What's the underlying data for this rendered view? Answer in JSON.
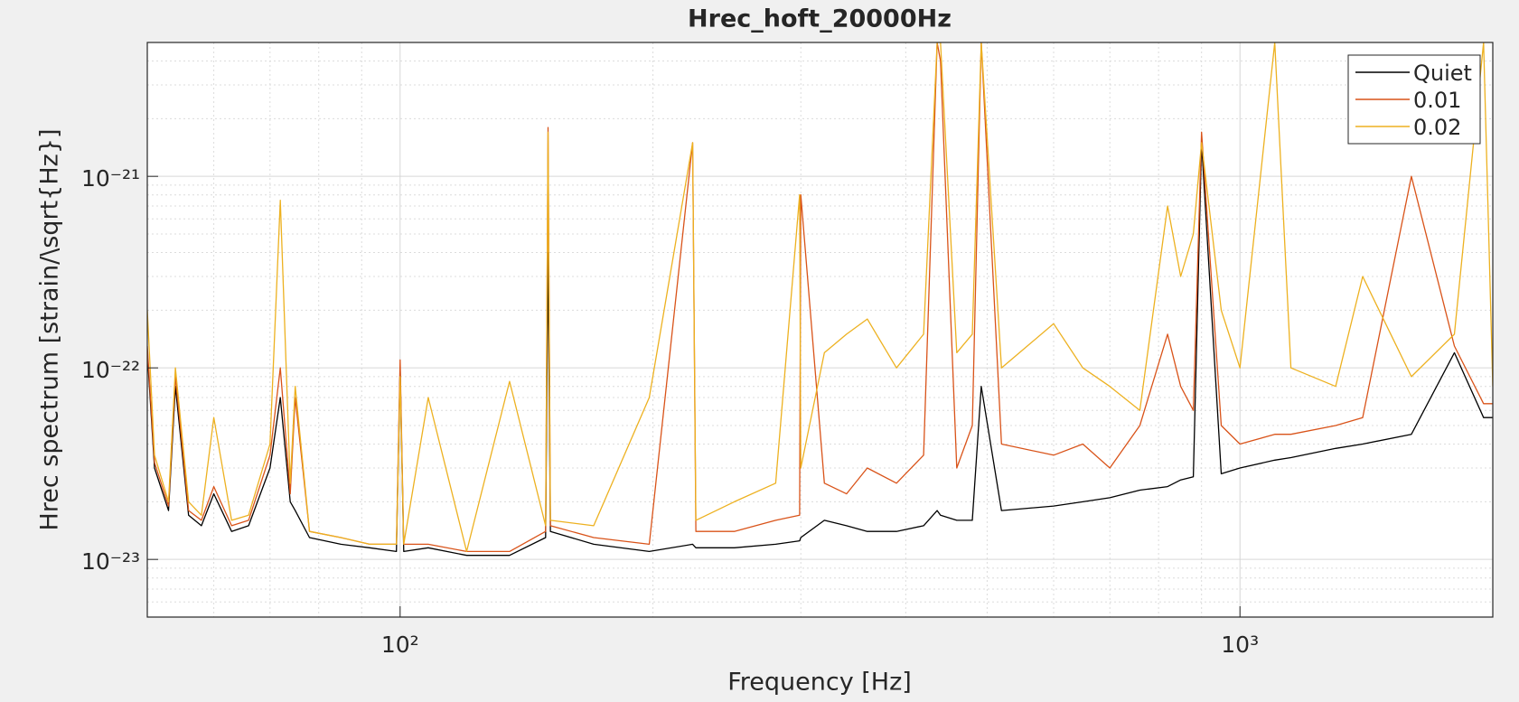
{
  "chart_data": {
    "type": "line",
    "title": "Hrec_hoft_20000Hz",
    "x_label": "Frequency [Hz]",
    "y_label": "Hrec spectrum [strain/\\sqrt{Hz}]",
    "x_log": true,
    "y_log": true,
    "grid": true,
    "minor_grid": true,
    "legend": "upper right",
    "xlim": [
      50,
      2000
    ],
    "ylim": [
      5e-24,
      5e-21
    ],
    "xticks": [
      {
        "value": 100,
        "label": "10²"
      },
      {
        "value": 1000,
        "label": "10³"
      }
    ],
    "yticks": [
      {
        "value": 1e-23,
        "label": "10⁻²³"
      },
      {
        "value": 1e-22,
        "label": "10⁻²²"
      },
      {
        "value": 1e-21,
        "label": "10⁻²¹"
      }
    ],
    "xminorticks": [
      50,
      60,
      70,
      80,
      90,
      200,
      300,
      400,
      500,
      600,
      700,
      800,
      900,
      2000
    ],
    "yminorticks": [
      5e-24,
      6e-24,
      7e-24,
      8e-24,
      9e-24,
      2e-23,
      3e-23,
      4e-23,
      5e-23,
      6e-23,
      7e-23,
      8e-23,
      9e-23,
      2e-22,
      3e-22,
      4e-22,
      5e-22,
      6e-22,
      7e-22,
      8e-22,
      9e-22,
      2e-21,
      3e-21,
      4e-21,
      5e-21
    ],
    "x": [
      50,
      51,
      53,
      54,
      56,
      58,
      60,
      63,
      66,
      70,
      72,
      74,
      75,
      78,
      85,
      92,
      99,
      100,
      101,
      108,
      120,
      135,
      149,
      150,
      151,
      170,
      198,
      223,
      225,
      250,
      280,
      299,
      300,
      320,
      340,
      360,
      390,
      420,
      436,
      440,
      460,
      480,
      492,
      520,
      600,
      650,
      700,
      760,
      820,
      850,
      880,
      900,
      950,
      1000,
      1100,
      1150,
      1300,
      1400,
      1600,
      1800,
      1950,
      2000
    ],
    "series": [
      {
        "name": "Quiet",
        "color": "#000000",
        "values": [
          1.2e-22,
          3e-23,
          1.8e-23,
          8e-23,
          1.7e-23,
          1.5e-23,
          2.2e-23,
          1.4e-23,
          1.5e-23,
          3e-23,
          7e-23,
          2e-23,
          1.8e-23,
          1.3e-23,
          1.2e-23,
          1.15e-23,
          1.1e-23,
          1e-22,
          1.1e-23,
          1.15e-23,
          1.05e-23,
          1.05e-23,
          1.3e-23,
          4e-22,
          1.4e-23,
          1.2e-23,
          1.1e-23,
          1.2e-23,
          1.15e-23,
          1.15e-23,
          1.2e-23,
          1.25e-23,
          1.3e-23,
          1.6e-23,
          1.5e-23,
          1.4e-23,
          1.4e-23,
          1.5e-23,
          1.8e-23,
          1.7e-23,
          1.6e-23,
          1.6e-23,
          8e-23,
          1.8e-23,
          1.9e-23,
          2e-23,
          2.1e-23,
          2.3e-23,
          2.4e-23,
          2.6e-23,
          2.7e-23,
          1.5e-21,
          2.8e-23,
          3e-23,
          3.3e-23,
          3.4e-23,
          3.8e-23,
          4e-23,
          4.5e-23,
          1.2e-22,
          5.5e-23,
          5.5e-23
        ]
      },
      {
        "name": "0.01",
        "color": "#d95319",
        "values": [
          1.3e-22,
          3.2e-23,
          1.9e-23,
          9e-23,
          1.8e-23,
          1.6e-23,
          2.4e-23,
          1.5e-23,
          1.6e-23,
          3.5e-23,
          1e-22,
          2.2e-23,
          7e-23,
          1.4e-23,
          1.3e-23,
          1.2e-23,
          1.2e-23,
          1.1e-22,
          1.2e-23,
          1.2e-23,
          1.1e-23,
          1.1e-23,
          1.4e-23,
          1.8e-21,
          1.5e-23,
          1.3e-23,
          1.2e-23,
          1.5e-21,
          1.4e-23,
          1.4e-23,
          1.6e-23,
          1.7e-23,
          8e-22,
          2.5e-23,
          2.2e-23,
          3e-23,
          2.5e-23,
          3.5e-23,
          5e-21,
          4e-21,
          3e-23,
          5e-23,
          5e-21,
          4e-23,
          3.5e-23,
          4e-23,
          3e-23,
          5e-23,
          1.5e-22,
          8e-23,
          6e-23,
          1.7e-21,
          5e-23,
          4e-23,
          4.5e-23,
          4.5e-23,
          5e-23,
          5.5e-23,
          1e-21,
          1.3e-22,
          6.5e-23,
          6.5e-23
        ]
      },
      {
        "name": "0.02",
        "color": "#edb120",
        "values": [
          2e-22,
          3.5e-23,
          2e-23,
          1e-22,
          2e-23,
          1.7e-23,
          5.5e-23,
          1.6e-23,
          1.7e-23,
          4e-23,
          7.5e-22,
          2.5e-23,
          8e-23,
          1.4e-23,
          1.3e-23,
          1.2e-23,
          1.2e-23,
          9e-23,
          1.2e-23,
          7e-23,
          1.1e-23,
          8.5e-23,
          1.5e-23,
          1.7e-21,
          1.6e-23,
          1.5e-23,
          7e-23,
          1.5e-21,
          1.6e-23,
          2e-23,
          2.5e-23,
          8e-22,
          3e-23,
          1.2e-22,
          1.5e-22,
          1.8e-22,
          1e-22,
          1.5e-22,
          5e-21,
          5e-21,
          1.2e-22,
          1.5e-22,
          5e-21,
          1e-22,
          1.7e-22,
          1e-22,
          8e-23,
          6e-23,
          7e-22,
          3e-22,
          5e-22,
          1.5e-21,
          2e-22,
          1e-22,
          5e-21,
          1e-22,
          8e-23,
          3e-22,
          9e-23,
          1.5e-22,
          5e-21,
          8e-23
        ]
      }
    ]
  }
}
